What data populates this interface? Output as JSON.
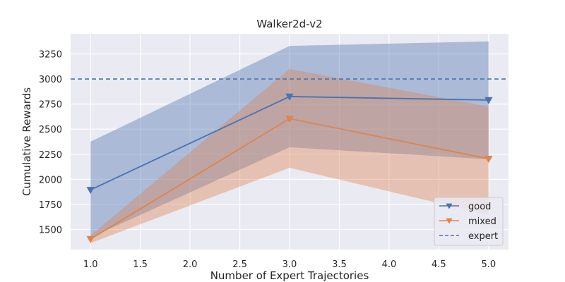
{
  "chart_data": {
    "type": "line",
    "title": "Walker2d-v2",
    "xlabel": "Number of Expert Trajectories",
    "ylabel": "Cumulative Rewards",
    "xlim": [
      0.8,
      5.2
    ],
    "ylim": [
      1300,
      3450
    ],
    "x_ticks": [
      1.0,
      1.5,
      2.0,
      2.5,
      3.0,
      3.5,
      4.0,
      4.5,
      5.0
    ],
    "x_tick_labels": [
      "1.0",
      "1.5",
      "2.0",
      "2.5",
      "3.0",
      "3.5",
      "4.0",
      "4.5",
      "5.0"
    ],
    "y_ticks": [
      1500,
      1750,
      2000,
      2250,
      2500,
      2750,
      3000,
      3250
    ],
    "y_tick_labels": [
      "1500",
      "1750",
      "2000",
      "2250",
      "2500",
      "2750",
      "3000",
      "3250"
    ],
    "grid": true,
    "legend_position": "lower right",
    "x": [
      1,
      3,
      5
    ],
    "series": [
      {
        "name": "good",
        "color": "#4c72b0",
        "marker": "triangle-down",
        "values": [
          1895,
          2825,
          2790
        ],
        "band_upper": [
          2375,
          3330,
          3375
        ],
        "band_lower": [
          1420,
          2320,
          2200
        ]
      },
      {
        "name": "mixed",
        "color": "#dd8452",
        "marker": "triangle-down",
        "values": [
          1405,
          2605,
          2205
        ],
        "band_upper": [
          1440,
          3100,
          2725
        ],
        "band_lower": [
          1365,
          2115,
          1645
        ]
      }
    ],
    "reference_lines": [
      {
        "name": "expert",
        "value": 3000,
        "color": "#4c72b0",
        "style": "dashed"
      }
    ]
  }
}
